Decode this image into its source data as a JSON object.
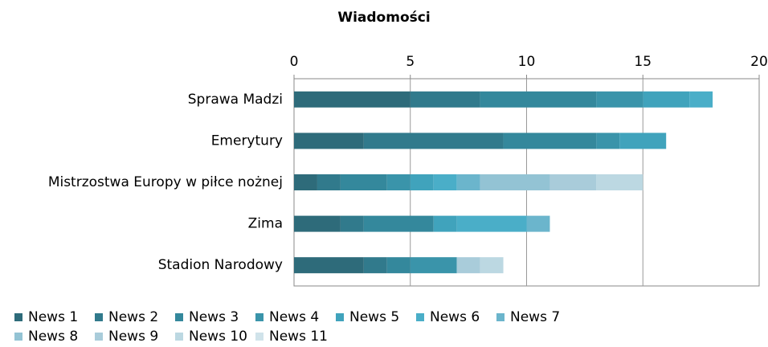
{
  "chart_data": {
    "type": "stacked_bar_horizontal",
    "title": "Wiadomości",
    "categories": [
      "Sprawa Madzi",
      "Emerytury",
      "Mistrzostwa Europy w piłce nożnej",
      "Zima",
      "Stadion Narodowy"
    ],
    "series": [
      {
        "name": "News 1",
        "color": "#2e6b7a",
        "values": [
          5,
          3,
          1,
          2,
          3
        ]
      },
      {
        "name": "News 2",
        "color": "#317a8c",
        "values": [
          3,
          6,
          1,
          1,
          1
        ]
      },
      {
        "name": "News 3",
        "color": "#34889c",
        "values": [
          5,
          4,
          2,
          3,
          1
        ]
      },
      {
        "name": "News 4",
        "color": "#3a94aa",
        "values": [
          2,
          1,
          1,
          0,
          2
        ]
      },
      {
        "name": "News 5",
        "color": "#40a3bc",
        "values": [
          2,
          2,
          1,
          1,
          0
        ]
      },
      {
        "name": "News 6",
        "color": "#4aaec8",
        "values": [
          1,
          0,
          1,
          3,
          0
        ]
      },
      {
        "name": "News 7",
        "color": "#6bb5cc",
        "values": [
          0,
          0,
          1,
          1,
          0
        ]
      },
      {
        "name": "News 8",
        "color": "#93c3d4",
        "values": [
          0,
          0,
          3,
          0,
          0
        ]
      },
      {
        "name": "News 9",
        "color": "#a9ccda",
        "values": [
          0,
          0,
          2,
          0,
          1
        ]
      },
      {
        "name": "News 10",
        "color": "#bcd8e2",
        "values": [
          0,
          0,
          2,
          0,
          1
        ]
      },
      {
        "name": "News 11",
        "color": "#d0e3ea",
        "values": [
          0,
          0,
          0,
          0,
          0
        ]
      }
    ],
    "xlim": [
      0,
      20
    ],
    "xticks": [
      0,
      5,
      10,
      15,
      20
    ],
    "grid": true
  }
}
